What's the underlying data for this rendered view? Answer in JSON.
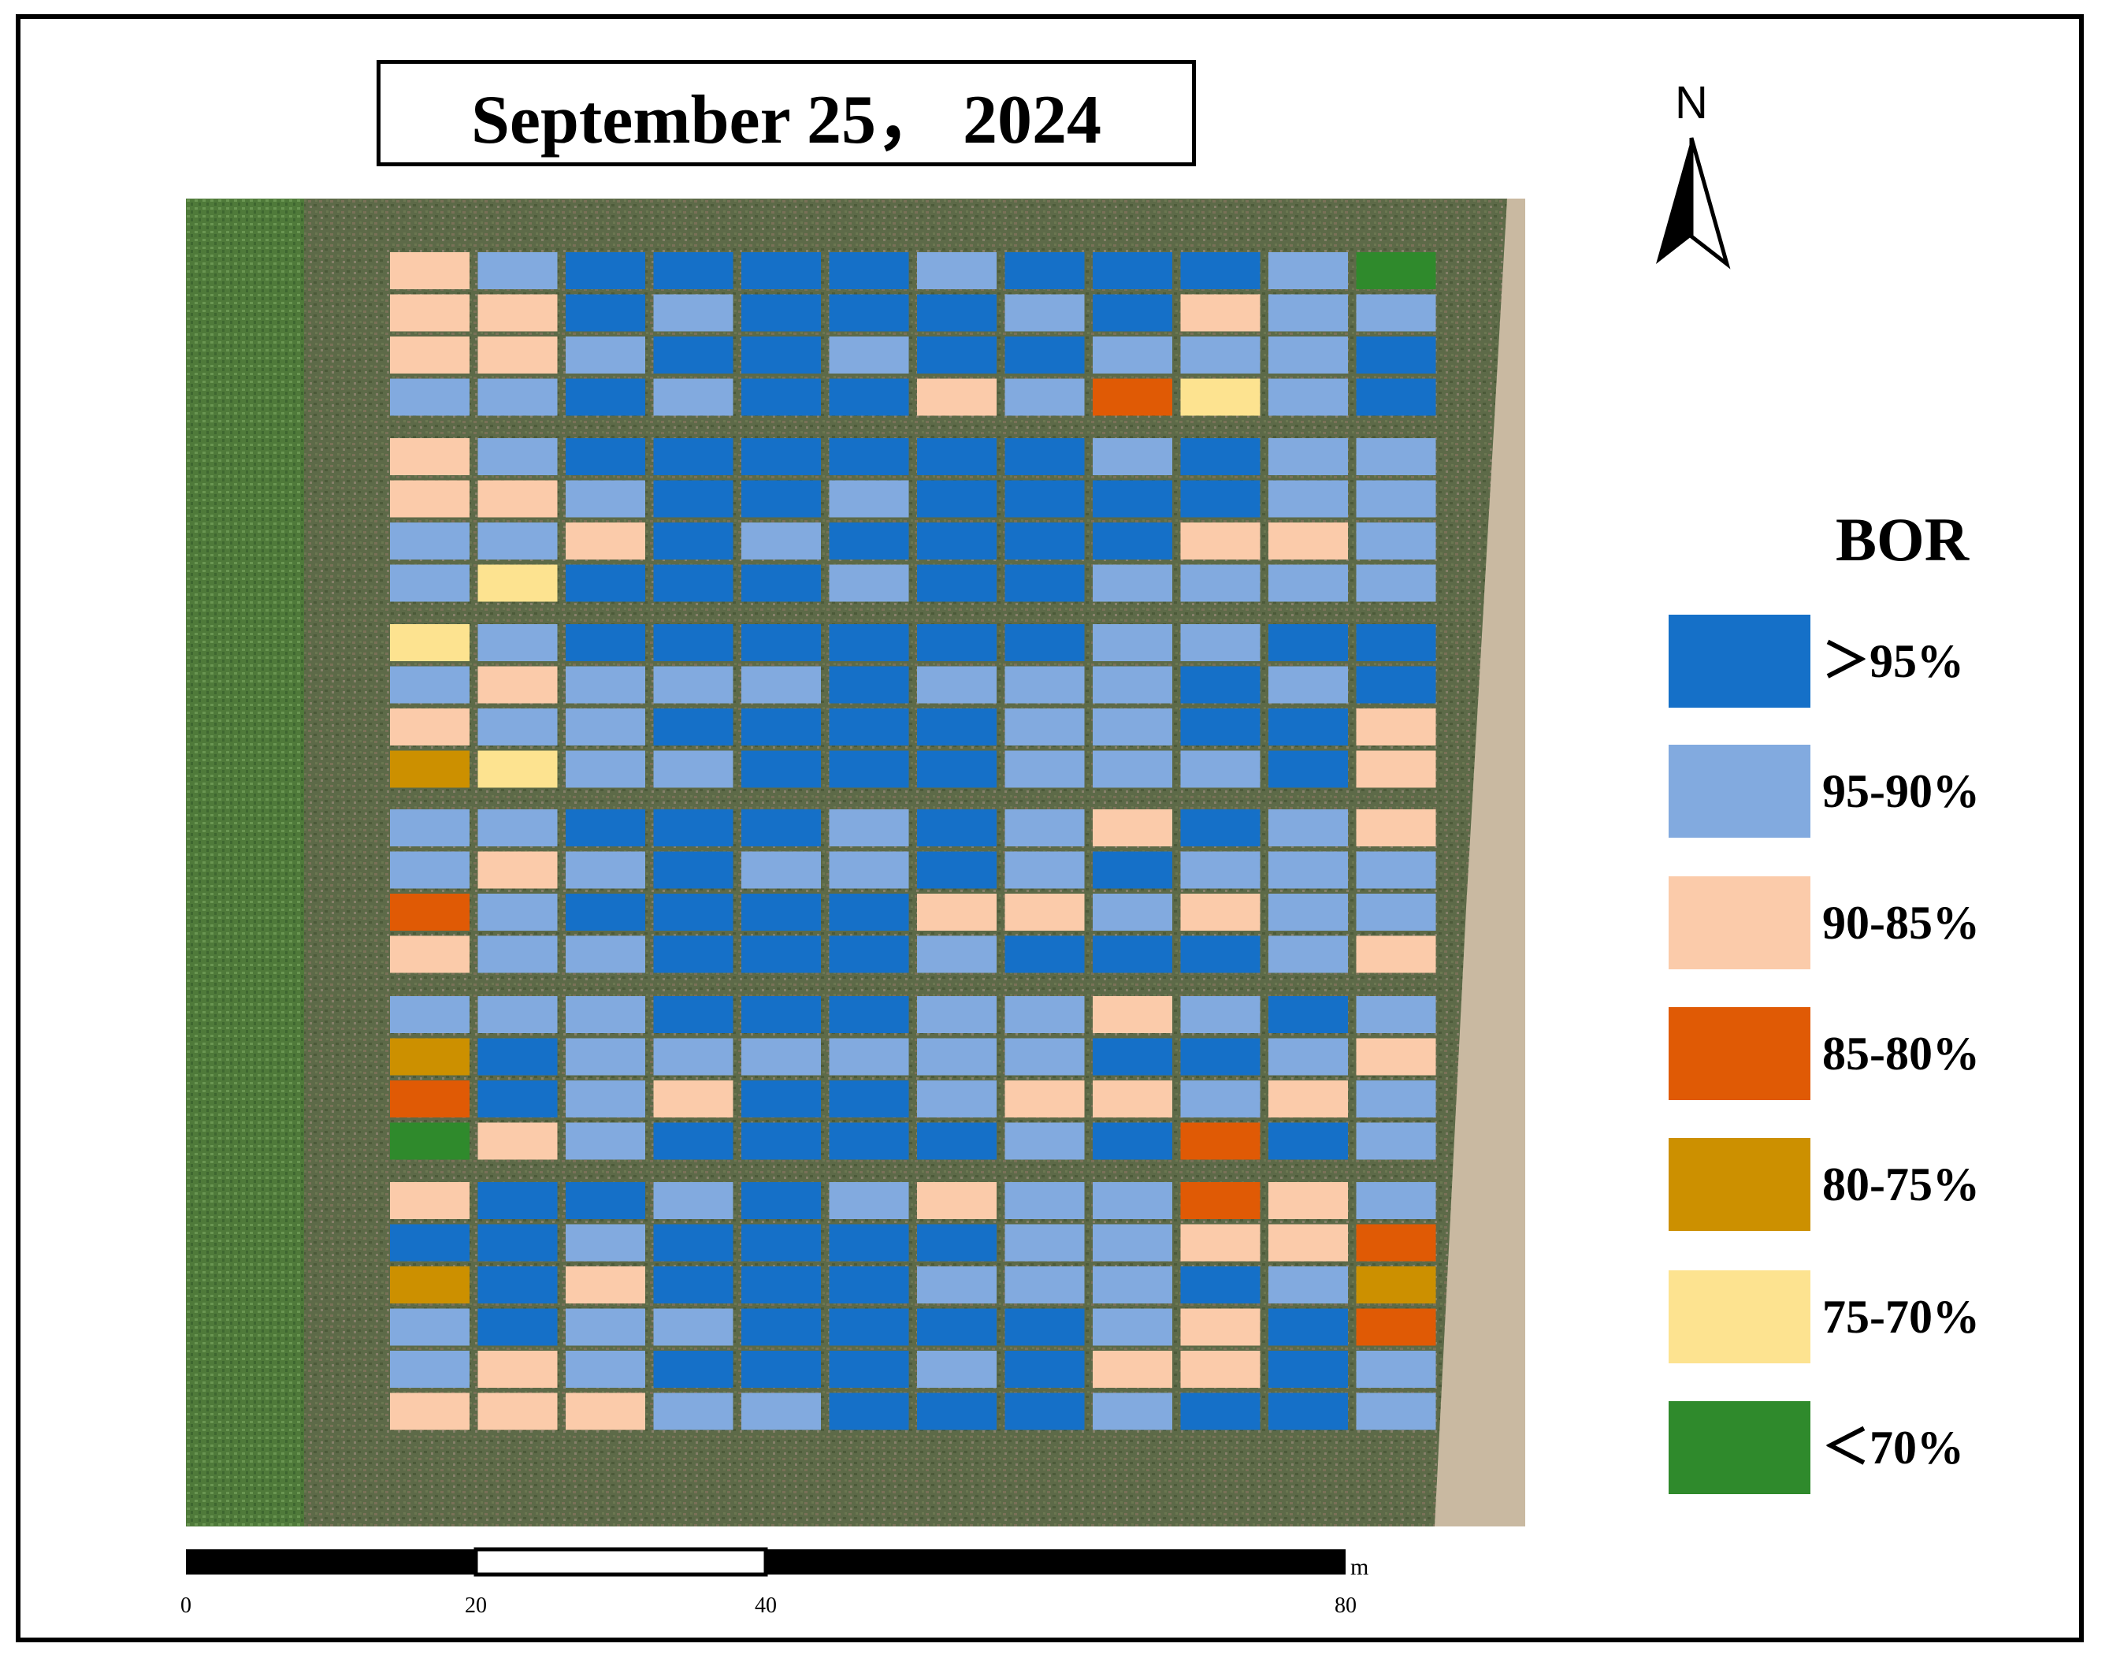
{
  "title": "September 25，  2024",
  "north_label": "N",
  "legend": {
    "title": "BOR",
    "items": [
      {
        "label": "＞95%",
        "color": "#1570c8"
      },
      {
        "label": "95-90%",
        "color": "#82aadf"
      },
      {
        "label": "90-85%",
        "color": "#fbcbaa"
      },
      {
        "label": "85-80%",
        "color": "#e05a05"
      },
      {
        "label": "80-75%",
        "color": "#cc9000"
      },
      {
        "label": "75-70%",
        "color": "#fde390"
      },
      {
        "label": "＜70%",
        "color": "#2f8a2c"
      }
    ]
  },
  "scale": {
    "unit": "m",
    "ticks": [
      "0",
      "20",
      "40",
      "80"
    ]
  },
  "plots": {
    "columns": 12,
    "blocks": [
      [
        [
          2,
          1,
          0,
          0,
          0,
          0,
          1,
          0,
          0,
          0,
          1,
          6
        ],
        [
          2,
          2,
          0,
          1,
          0,
          0,
          0,
          1,
          0,
          2,
          1,
          1
        ],
        [
          2,
          2,
          1,
          0,
          0,
          1,
          0,
          0,
          1,
          1,
          1,
          0
        ],
        [
          1,
          1,
          0,
          1,
          0,
          0,
          2,
          1,
          3,
          5,
          1,
          0
        ]
      ],
      [
        [
          2,
          1,
          0,
          0,
          0,
          0,
          0,
          0,
          1,
          0,
          1,
          1
        ],
        [
          2,
          2,
          1,
          0,
          0,
          1,
          0,
          0,
          0,
          0,
          1,
          1
        ],
        [
          1,
          1,
          2,
          0,
          1,
          0,
          0,
          0,
          0,
          2,
          2,
          1
        ],
        [
          1,
          5,
          0,
          0,
          0,
          1,
          0,
          0,
          1,
          1,
          1,
          1
        ]
      ],
      [
        [
          5,
          1,
          0,
          0,
          0,
          0,
          0,
          0,
          1,
          1,
          0,
          0
        ],
        [
          1,
          2,
          1,
          1,
          1,
          0,
          1,
          1,
          1,
          0,
          1,
          0
        ],
        [
          2,
          1,
          1,
          0,
          0,
          0,
          0,
          1,
          1,
          0,
          0,
          2
        ],
        [
          4,
          5,
          1,
          1,
          0,
          0,
          0,
          1,
          1,
          1,
          0,
          2
        ]
      ],
      [
        [
          1,
          1,
          0,
          0,
          0,
          1,
          0,
          1,
          2,
          0,
          1,
          2
        ],
        [
          1,
          2,
          1,
          0,
          1,
          1,
          0,
          1,
          0,
          1,
          1,
          1
        ],
        [
          3,
          1,
          0,
          0,
          0,
          0,
          2,
          2,
          1,
          2,
          1,
          1
        ],
        [
          2,
          1,
          1,
          0,
          0,
          0,
          1,
          0,
          0,
          0,
          1,
          2
        ]
      ],
      [
        [
          1,
          1,
          1,
          0,
          0,
          0,
          1,
          1,
          2,
          1,
          0,
          1
        ],
        [
          4,
          0,
          1,
          1,
          1,
          1,
          1,
          1,
          0,
          0,
          1,
          2
        ],
        [
          3,
          0,
          1,
          2,
          0,
          0,
          1,
          2,
          2,
          1,
          2,
          1
        ],
        [
          6,
          2,
          1,
          0,
          0,
          0,
          0,
          1,
          0,
          3,
          0,
          1
        ]
      ],
      [
        [
          2,
          0,
          0,
          1,
          0,
          1,
          2,
          1,
          1,
          3,
          2,
          1
        ],
        [
          0,
          0,
          1,
          0,
          0,
          0,
          0,
          1,
          1,
          2,
          2,
          3
        ],
        [
          4,
          0,
          2,
          0,
          0,
          0,
          1,
          1,
          1,
          0,
          1,
          4
        ],
        [
          1,
          0,
          1,
          1,
          0,
          0,
          0,
          0,
          1,
          2,
          0,
          3
        ],
        [
          1,
          2,
          1,
          0,
          0,
          0,
          1,
          0,
          2,
          2,
          0,
          1
        ],
        [
          2,
          2,
          2,
          1,
          1,
          0,
          0,
          0,
          1,
          0,
          0,
          1
        ]
      ]
    ]
  }
}
